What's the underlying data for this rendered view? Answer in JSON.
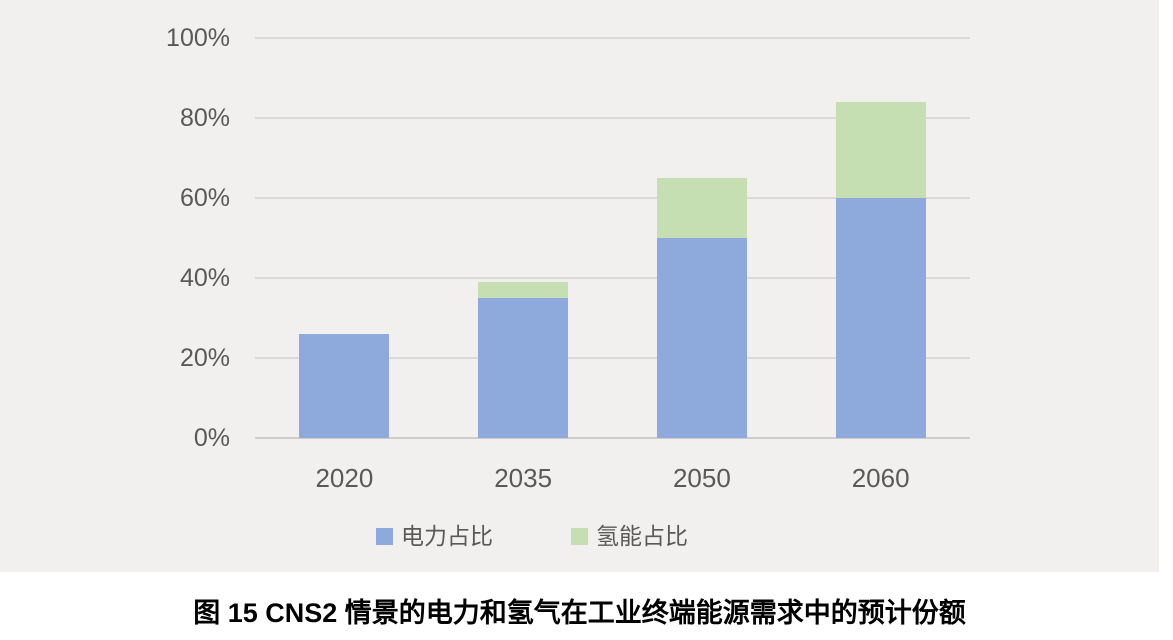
{
  "colors": {
    "panel_background": "#f1f0ee",
    "page_background": "#ffffff",
    "gridline": "#dbdad8",
    "axis_line": "#cfcdca",
    "axis_text": "#595959",
    "legend_text": "#595959",
    "caption_text": "#000000",
    "electricity": "#8ea9db",
    "hydrogen": "#c5dfb3"
  },
  "chart_data": {
    "type": "bar",
    "stacked": true,
    "title": "",
    "xlabel": "",
    "ylabel": "",
    "categories": [
      "2020",
      "2035",
      "2050",
      "2060"
    ],
    "series": [
      {
        "name": "电力占比",
        "color_key": "electricity",
        "values": [
          26,
          35,
          50,
          60
        ]
      },
      {
        "name": "氢能占比",
        "color_key": "hydrogen",
        "values": [
          0,
          4,
          15,
          24
        ]
      }
    ],
    "stacked_totals": [
      26,
      39,
      65,
      84
    ],
    "ylim": [
      0,
      100
    ],
    "yticks": [
      "0%",
      "20%",
      "40%",
      "60%",
      "80%",
      "100%"
    ],
    "grid": true,
    "legend_position": "bottom"
  },
  "legend": {
    "items": [
      {
        "label": "电力占比"
      },
      {
        "label": "氢能占比"
      }
    ]
  },
  "caption": "图 15 CNS2 情景的电力和氢气在工业终端能源需求中的预计份额"
}
